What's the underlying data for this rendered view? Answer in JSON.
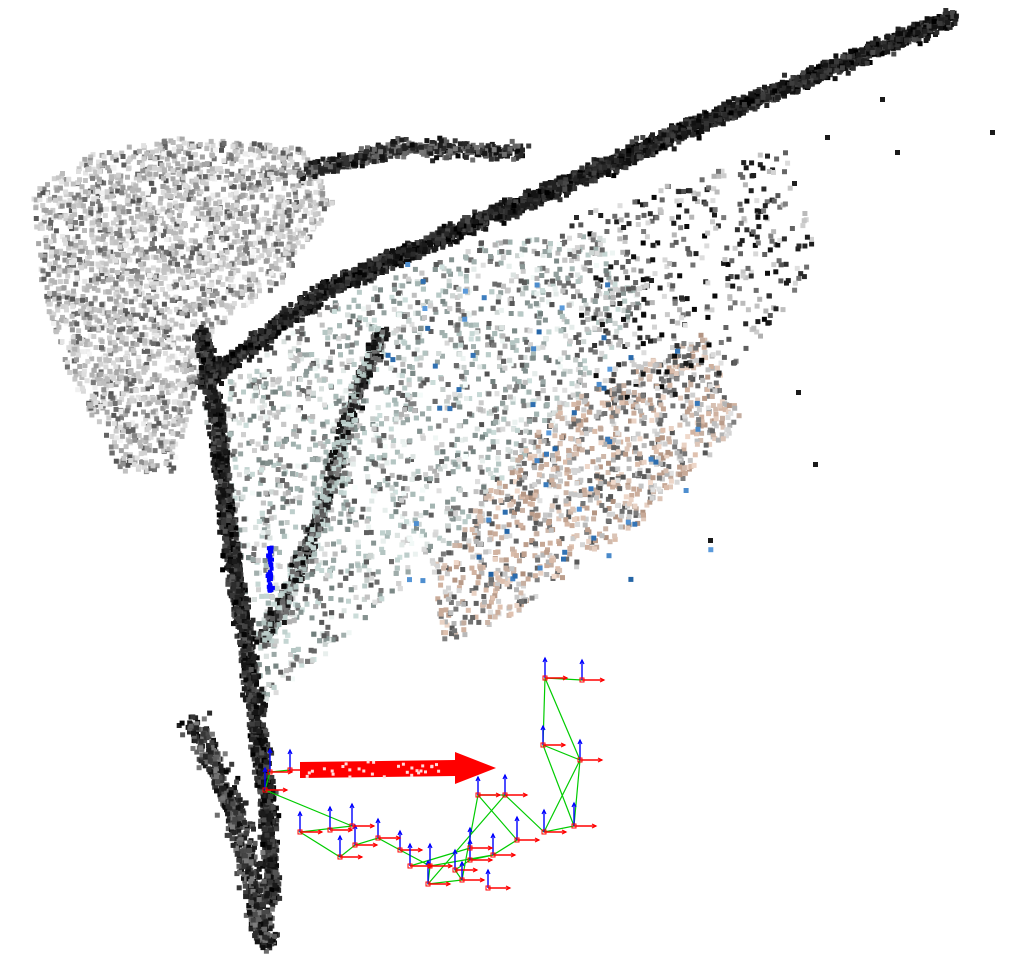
{
  "scene": {
    "background": "#ffffff",
    "point_cloud": {
      "palette": {
        "dark": "#1a1a1a",
        "mid_gray": "#6b6b6b",
        "light_gray": "#c9c9c9",
        "pale_teal": "#b8c9c6",
        "tan": "#c8aa98",
        "blue": "#3f7fc0"
      }
    },
    "camera_poses": {
      "axis_colors": {
        "x": "#ff0000",
        "y": "#0000ff",
        "trajectory": "#00cc00"
      },
      "icon": "camera-frame-axes-icon"
    },
    "direction_arrow": {
      "color": "#ff0000",
      "icon": "red-direction-arrow-icon"
    },
    "blue_marker": {
      "color": "#0000ff",
      "icon": "blue-point-marker-icon"
    }
  }
}
